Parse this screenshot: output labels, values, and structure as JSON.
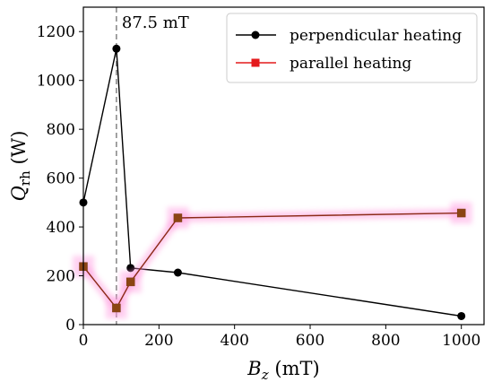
{
  "chart_data": {
    "type": "line",
    "xlabel": {
      "main": "B",
      "sub": "z",
      "unit": " (mT)"
    },
    "ylabel": {
      "main": "Q",
      "sub": "rh",
      "unit": " (W)"
    },
    "xlim": [
      0,
      1060
    ],
    "ylim": [
      0,
      1300
    ],
    "xticks": [
      0,
      200,
      400,
      600,
      800,
      1000
    ],
    "yticks": [
      0,
      200,
      400,
      600,
      800,
      1000,
      1200
    ],
    "series": [
      {
        "name": "perpendicular heating",
        "color": "#000000",
        "marker": "circle",
        "x": [
          0,
          87.5,
          125,
          250,
          1000
        ],
        "y": [
          500,
          1130,
          232,
          213,
          35
        ]
      },
      {
        "name": "parallel heating",
        "color": "#e41a1c",
        "line_color": "#8b2a17",
        "marker": "square",
        "x": [
          0,
          87.5,
          125,
          250,
          1000
        ],
        "y": [
          238,
          68,
          175,
          437,
          457
        ]
      }
    ],
    "annotation": {
      "x": 87.5,
      "text": "87.5 mT",
      "style": "dashed vertical line"
    },
    "legend_position": "top-right",
    "grid": false
  }
}
